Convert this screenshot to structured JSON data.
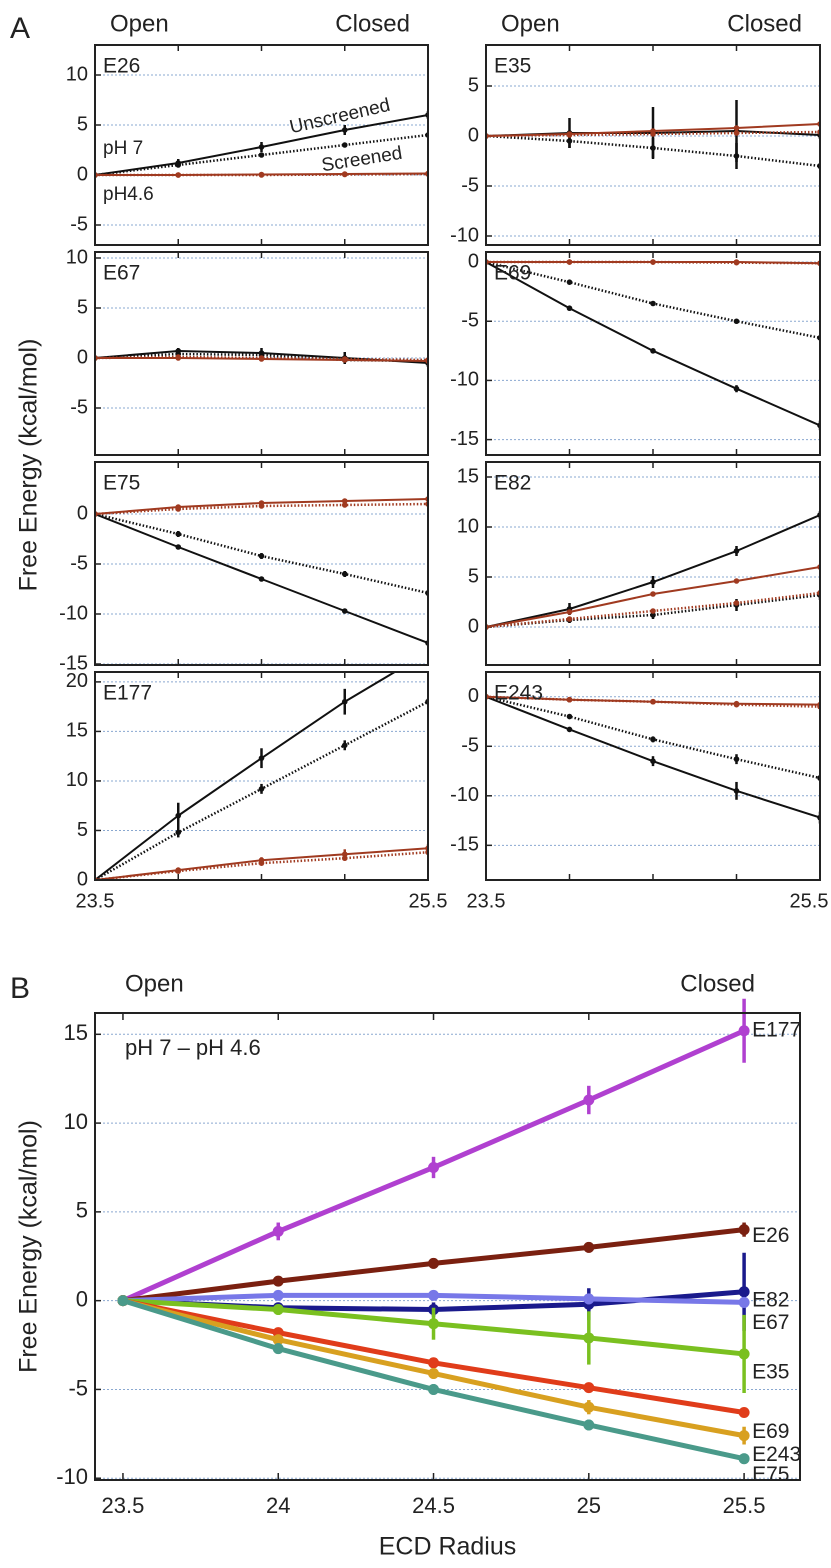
{
  "figure": {
    "panel_a_label": "A",
    "panel_b_label": "B",
    "panel_a_ylabel": "Free Energy (kcal/mol)"
  },
  "chart_data": [
    {
      "type": "line",
      "title": "E26",
      "title_color": "#d03010",
      "open_label": "Open",
      "closed_label": "Closed",
      "annotations": {
        "unscreened": "Unscreened",
        "screened": "Screened",
        "ph7": "pH 7",
        "ph46": "pH4.6"
      },
      "x": [
        23.5,
        24,
        24.5,
        25,
        25.5
      ],
      "xlim": [
        23.5,
        25.5
      ],
      "ylim": [
        -7,
        13
      ],
      "yticks": [
        -5,
        0,
        5,
        10
      ],
      "grid": true,
      "series": [
        {
          "color": "#111111",
          "style": "solid",
          "values": [
            0,
            1.2,
            2.8,
            4.5,
            6.0
          ],
          "errors": [
            0,
            0.4,
            0.5,
            0.5,
            0.4
          ]
        },
        {
          "color": "#111111",
          "style": "dotted",
          "values": [
            0,
            1.0,
            2.0,
            3.0,
            4.0
          ]
        },
        {
          "color": "#a03a20",
          "style": "solid",
          "values": [
            0,
            0,
            0.05,
            0.1,
            0.15
          ]
        },
        {
          "color": "#a03a20",
          "style": "dotted",
          "values": [
            0,
            0,
            0,
            0.05,
            0.1
          ]
        }
      ]
    },
    {
      "type": "line",
      "title": "E35",
      "title_color": "#60b020",
      "open_label": "Open",
      "closed_label": "Closed",
      "x": [
        23.5,
        24,
        24.5,
        25,
        25.5
      ],
      "xlim": [
        23.5,
        25.5
      ],
      "ylim": [
        -10.9,
        9.1
      ],
      "yticks": [
        -10,
        -5,
        0,
        5
      ],
      "grid": true,
      "series": [
        {
          "color": "#111111",
          "style": "solid",
          "values": [
            0,
            0.3,
            0.3,
            0.5,
            0.1
          ],
          "errors": [
            0,
            1.5,
            2.6,
            3.1,
            0.4
          ]
        },
        {
          "color": "#111111",
          "style": "dotted",
          "values": [
            0,
            -0.5,
            -1.2,
            -2.0,
            -3.0
          ],
          "errors": [
            0,
            0.7,
            1.0,
            1.3,
            0.3
          ]
        },
        {
          "color": "#a03a20",
          "style": "solid",
          "values": [
            0,
            0.2,
            0.5,
            0.8,
            1.2
          ]
        },
        {
          "color": "#a03a20",
          "style": "dotted",
          "values": [
            0,
            0.1,
            0.2,
            0.3,
            0.4
          ]
        }
      ]
    },
    {
      "type": "line",
      "title": "E67",
      "title_color": "#7070e0",
      "x": [
        23.5,
        24,
        24.5,
        25,
        25.5
      ],
      "xlim": [
        23.5,
        25.5
      ],
      "ylim": [
        -9.7,
        10.6
      ],
      "yticks": [
        -5,
        0,
        5,
        10
      ],
      "grid": true,
      "series": [
        {
          "color": "#111111",
          "style": "solid",
          "values": [
            0,
            0.7,
            0.5,
            0,
            -0.5
          ],
          "errors": [
            0,
            0.3,
            0.5,
            0.6,
            0.4
          ]
        },
        {
          "color": "#111111",
          "style": "dotted",
          "values": [
            0,
            0.4,
            0.3,
            -0.2,
            -0.3
          ]
        },
        {
          "color": "#a03a20",
          "style": "solid",
          "values": [
            0,
            0,
            -0.1,
            -0.2,
            -0.3
          ]
        },
        {
          "color": "#a03a20",
          "style": "dotted",
          "values": [
            0,
            0.1,
            0,
            -0.1,
            -0.2
          ]
        }
      ]
    },
    {
      "type": "line",
      "title": "E69",
      "title_color": "#d03010",
      "x": [
        23.5,
        24,
        24.5,
        25,
        25.5
      ],
      "xlim": [
        23.5,
        25.5
      ],
      "ylim": [
        -16.3,
        0.85
      ],
      "yticks": [
        -15,
        -10,
        -5,
        0
      ],
      "grid": true,
      "series": [
        {
          "color": "#111111",
          "style": "solid",
          "values": [
            0,
            -3.9,
            -7.5,
            -10.7,
            -13.8
          ],
          "errors": [
            0,
            0,
            0,
            0.3,
            0.4
          ]
        },
        {
          "color": "#111111",
          "style": "dotted",
          "values": [
            0,
            -1.7,
            -3.5,
            -5.0,
            -6.4
          ]
        },
        {
          "color": "#a03a20",
          "style": "solid",
          "values": [
            0,
            0,
            0,
            0,
            -0.1
          ]
        },
        {
          "color": "#a03a20",
          "style": "dotted",
          "values": [
            0,
            0,
            0,
            -0.05,
            -0.1
          ]
        }
      ]
    },
    {
      "type": "line",
      "title": "E75",
      "title_color": "#4a9a8a",
      "x": [
        23.5,
        24,
        24.5,
        25,
        25.5
      ],
      "xlim": [
        23.5,
        25.5
      ],
      "ylim": [
        -15.1,
        5.2
      ],
      "yticks": [
        -15,
        -10,
        -5,
        0
      ],
      "grid": true,
      "series": [
        {
          "color": "#111111",
          "style": "solid",
          "values": [
            0,
            -3.3,
            -6.5,
            -9.7,
            -12.9
          ]
        },
        {
          "color": "#111111",
          "style": "dotted",
          "values": [
            0,
            -2.0,
            -4.2,
            -6.0,
            -7.9
          ],
          "errors": [
            0,
            0.3,
            0.3,
            0.3,
            0.3
          ]
        },
        {
          "color": "#a03a20",
          "style": "solid",
          "values": [
            0,
            0.7,
            1.1,
            1.3,
            1.5
          ]
        },
        {
          "color": "#a03a20",
          "style": "dotted",
          "values": [
            0,
            0.5,
            0.8,
            0.9,
            1.0
          ]
        }
      ]
    },
    {
      "type": "line",
      "title": "E82",
      "title_color": "#1a1a8c",
      "x": [
        23.5,
        24,
        24.5,
        25,
        25.5
      ],
      "xlim": [
        23.5,
        25.5
      ],
      "ylim": [
        -3.8,
        16.5
      ],
      "yticks": [
        0,
        5,
        10,
        15
      ],
      "grid": true,
      "series": [
        {
          "color": "#111111",
          "style": "solid",
          "values": [
            0,
            1.8,
            4.5,
            7.6,
            11.2
          ],
          "errors": [
            0,
            0.6,
            0.6,
            0.5,
            0.4
          ]
        },
        {
          "color": "#a03a20",
          "style": "solid",
          "values": [
            0,
            1.5,
            3.3,
            4.6,
            6.0
          ]
        },
        {
          "color": "#111111",
          "style": "dotted",
          "values": [
            0,
            0.7,
            1.2,
            2.2,
            3.2
          ],
          "errors": [
            0,
            0.3,
            0.4,
            0.6,
            0.5
          ]
        },
        {
          "color": "#a03a20",
          "style": "dotted",
          "values": [
            0,
            0.8,
            1.6,
            2.4,
            3.4
          ]
        }
      ]
    },
    {
      "type": "line",
      "title": "E177",
      "title_color": "#b030c0",
      "x": [
        23.5,
        24,
        24.5,
        25,
        25.5
      ],
      "xlim": [
        23.5,
        25.5
      ],
      "xticks": [
        23.5,
        25.5
      ],
      "ylim": [
        0,
        21
      ],
      "yticks": [
        0,
        5,
        10,
        15,
        20
      ],
      "grid": true,
      "series": [
        {
          "color": "#111111",
          "style": "solid",
          "values": [
            0,
            6.5,
            12.3,
            18.0,
            23.0
          ],
          "errors": [
            0,
            1.3,
            1.0,
            1.3,
            0
          ]
        },
        {
          "color": "#111111",
          "style": "dotted",
          "values": [
            0,
            4.8,
            9.2,
            13.6,
            18.0
          ],
          "errors": [
            0,
            0.5,
            0.5,
            0.5,
            0.3
          ]
        },
        {
          "color": "#a03a20",
          "style": "solid",
          "values": [
            0,
            1.0,
            2.0,
            2.6,
            3.2
          ],
          "errors": [
            0,
            0.2,
            0.3,
            0.5,
            0.4
          ]
        },
        {
          "color": "#a03a20",
          "style": "dotted",
          "values": [
            0,
            0.9,
            1.7,
            2.2,
            2.8
          ]
        }
      ]
    },
    {
      "type": "line",
      "title": "E243",
      "title_color": "#d8a020",
      "x": [
        23.5,
        24,
        24.5,
        25,
        25.5
      ],
      "xlim": [
        23.5,
        25.5
      ],
      "xticks": [
        23.5,
        25.5
      ],
      "ylim": [
        -18.5,
        2.5
      ],
      "yticks": [
        -15,
        -10,
        -5,
        0
      ],
      "grid": true,
      "series": [
        {
          "color": "#111111",
          "style": "solid",
          "values": [
            0,
            -3.3,
            -6.5,
            -9.5,
            -12.2
          ],
          "errors": [
            0,
            0,
            0.5,
            0.9,
            0.6
          ]
        },
        {
          "color": "#111111",
          "style": "dotted",
          "values": [
            0,
            -2.0,
            -4.3,
            -6.3,
            -8.2
          ],
          "errors": [
            0,
            0,
            0.3,
            0.5,
            0.3
          ]
        },
        {
          "color": "#a03a20",
          "style": "solid",
          "values": [
            0,
            -0.3,
            -0.5,
            -0.7,
            -0.8
          ]
        },
        {
          "color": "#a03a20",
          "style": "dotted",
          "values": [
            0,
            -0.3,
            -0.5,
            -0.8,
            -1.0
          ]
        }
      ]
    },
    {
      "type": "line",
      "title": "pH 7 – pH 4.6",
      "open_label": "Open",
      "closed_label": "Closed",
      "xlabel": "ECD Radius",
      "ylabel": "Free Energy (kcal/mol)",
      "x": [
        23.5,
        24,
        24.5,
        25,
        25.5
      ],
      "xlim": [
        23.41,
        25.68
      ],
      "xticks": [
        23.5,
        24,
        24.5,
        25,
        25.5
      ],
      "ylim": [
        -10.1,
        16.2
      ],
      "yticks": [
        -10,
        -5,
        0,
        5,
        10,
        15
      ],
      "grid": true,
      "series": [
        {
          "name": "E177",
          "color": "#b040d0",
          "values": [
            0,
            3.9,
            7.5,
            11.3,
            15.2
          ],
          "errors": [
            0,
            0.5,
            0.6,
            0.8,
            1.8
          ]
        },
        {
          "name": "E26",
          "color": "#7a2010",
          "values": [
            0,
            1.1,
            2.1,
            3.0,
            4.0
          ],
          "errors": [
            0,
            0.2,
            0.3,
            0.3,
            0.4
          ]
        },
        {
          "name": "E82",
          "color": "#1a1a8c",
          "values": [
            0,
            -0.4,
            -0.5,
            -0.2,
            0.5
          ],
          "errors": [
            0,
            0.3,
            0.4,
            0.9,
            2.2
          ]
        },
        {
          "name": "E67",
          "color": "#7878e8",
          "values": [
            0,
            0.3,
            0.3,
            0.1,
            -0.1
          ],
          "errors": [
            0,
            0.2,
            0.2,
            0.3,
            0.3
          ]
        },
        {
          "name": "E35",
          "color": "#7ac020",
          "values": [
            0,
            -0.5,
            -1.3,
            -2.1,
            -3.0
          ],
          "errors": [
            0,
            0.3,
            0.9,
            1.5,
            2.2
          ]
        },
        {
          "name": "E69",
          "color": "#e03c1a",
          "values": [
            0,
            -1.8,
            -3.5,
            -4.9,
            -6.3
          ],
          "errors": [
            0,
            0.2,
            0.2,
            0.2,
            0.2
          ]
        },
        {
          "name": "E243",
          "color": "#d8a020",
          "values": [
            0,
            -2.2,
            -4.1,
            -6.0,
            -7.6
          ],
          "errors": [
            0,
            0.3,
            0.3,
            0.4,
            0.5
          ]
        },
        {
          "name": "E75",
          "color": "#4a9a8a",
          "values": [
            0,
            -2.7,
            -5.0,
            -7.0,
            -8.9
          ],
          "errors": [
            0,
            0.3,
            0.3,
            0.3,
            0.3
          ]
        }
      ]
    }
  ]
}
